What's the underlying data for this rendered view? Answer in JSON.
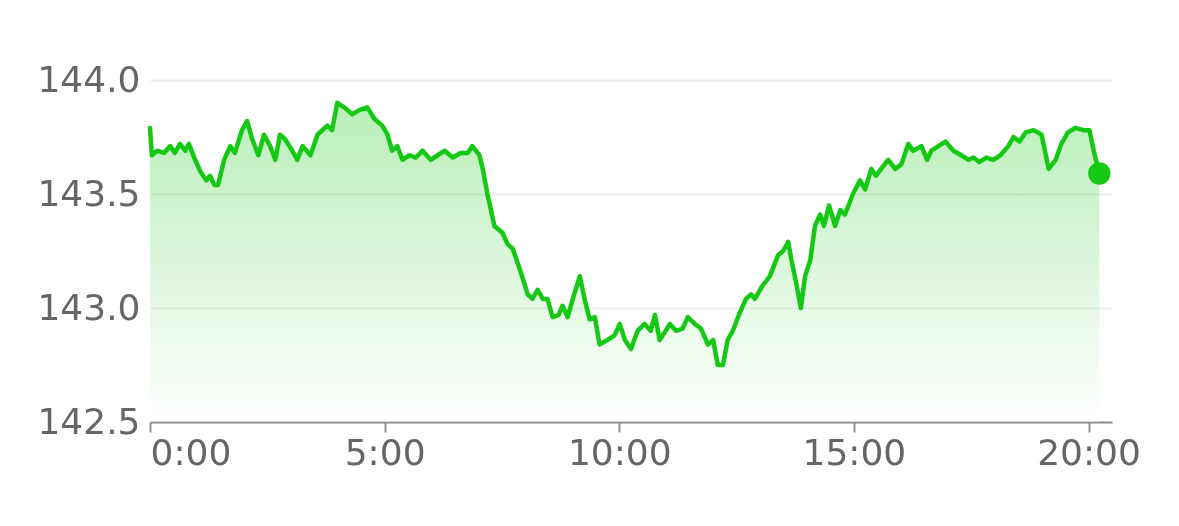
{
  "chart_data": {
    "type": "area",
    "xlim": [
      0,
      20.5
    ],
    "ylim": [
      142.5,
      144.0
    ],
    "xticks": [
      {
        "value": 0,
        "label": "0:00"
      },
      {
        "value": 5,
        "label": "5:00"
      },
      {
        "value": 10,
        "label": "10:00"
      },
      {
        "value": 15,
        "label": "15:00"
      },
      {
        "value": 20,
        "label": "20:00"
      }
    ],
    "yticks": [
      {
        "value": 142.5,
        "label": "142.5"
      },
      {
        "value": 143,
        "label": "143.0"
      },
      {
        "value": 143.5,
        "label": "143.5"
      },
      {
        "value": 144,
        "label": "144.0"
      }
    ],
    "grid": "y",
    "series": [
      {
        "color": "#14c814",
        "x": [
          0,
          0.04,
          0.15,
          0.3,
          0.43,
          0.53,
          0.64,
          0.75,
          0.83,
          0.94,
          1.07,
          1.2,
          1.28,
          1.37,
          1.45,
          1.58,
          1.71,
          1.81,
          1.96,
          2.07,
          2.18,
          2.31,
          2.43,
          2.56,
          2.67,
          2.77,
          2.88,
          3.03,
          3.14,
          3.25,
          3.42,
          3.57,
          3.78,
          3.88,
          3.99,
          4.14,
          4.31,
          4.48,
          4.63,
          4.78,
          4.95,
          5.06,
          5.16,
          5.27,
          5.38,
          5.53,
          5.66,
          5.81,
          5.98,
          6.13,
          6.28,
          6.45,
          6.62,
          6.77,
          6.87,
          7.02,
          7.09,
          7.19,
          7.34,
          7.51,
          7.62,
          7.73,
          7.88,
          8.05,
          8.15,
          8.26,
          8.37,
          8.47,
          8.58,
          8.71,
          8.79,
          8.9,
          9.01,
          9.16,
          9.26,
          9.37,
          9.48,
          9.58,
          9.75,
          9.9,
          10.01,
          10.12,
          10.25,
          10.39,
          10.54,
          10.67,
          10.76,
          10.86,
          10.99,
          11.08,
          11.21,
          11.35,
          11.46,
          11.61,
          11.74,
          11.89,
          12.0,
          12.1,
          12.21,
          12.31,
          12.42,
          12.57,
          12.7,
          12.81,
          12.89,
          13.06,
          13.21,
          13.38,
          13.49,
          13.6,
          13.66,
          13.77,
          13.87,
          13.96,
          14.07,
          14.17,
          14.28,
          14.36,
          14.47,
          14.6,
          14.71,
          14.81,
          14.98,
          15.13,
          15.24,
          15.37,
          15.47,
          15.58,
          15.73,
          15.88,
          16.01,
          16.16,
          16.26,
          16.44,
          16.56,
          16.65,
          16.8,
          16.95,
          17.12,
          17.29,
          17.44,
          17.55,
          17.67,
          17.82,
          17.97,
          18.12,
          18.29,
          18.4,
          18.53,
          18.66,
          18.83,
          19.0,
          19.15,
          19.3,
          19.42,
          19.56,
          19.72,
          19.89,
          20.02,
          20.11,
          20.17,
          20.23
        ],
        "values": [
          143.79,
          143.67,
          143.69,
          143.68,
          143.71,
          143.68,
          143.72,
          143.69,
          143.72,
          143.66,
          143.6,
          143.56,
          143.58,
          143.54,
          143.54,
          143.65,
          143.71,
          143.68,
          143.78,
          143.82,
          143.74,
          143.67,
          143.76,
          143.71,
          143.65,
          143.76,
          143.74,
          143.69,
          143.65,
          143.71,
          143.67,
          143.76,
          143.8,
          143.78,
          143.9,
          143.88,
          143.85,
          143.87,
          143.88,
          143.83,
          143.8,
          143.76,
          143.69,
          143.71,
          143.65,
          143.67,
          143.66,
          143.69,
          143.65,
          143.67,
          143.69,
          143.66,
          143.68,
          143.68,
          143.71,
          143.67,
          143.61,
          143.5,
          143.36,
          143.33,
          143.28,
          143.26,
          143.17,
          143.06,
          143.04,
          143.08,
          143.04,
          143.04,
          142.96,
          142.97,
          143.01,
          142.96,
          143.04,
          143.14,
          143.04,
          142.95,
          142.96,
          142.84,
          142.86,
          142.88,
          142.93,
          142.86,
          142.82,
          142.9,
          142.93,
          142.9,
          142.97,
          142.86,
          142.9,
          142.93,
          142.9,
          142.91,
          142.96,
          142.93,
          142.91,
          142.84,
          142.86,
          142.75,
          142.75,
          142.86,
          142.9,
          142.98,
          143.04,
          143.06,
          143.04,
          143.1,
          143.14,
          143.23,
          143.25,
          143.29,
          143.22,
          143.11,
          143.0,
          143.14,
          143.21,
          143.36,
          143.41,
          143.36,
          143.45,
          143.36,
          143.43,
          143.41,
          143.5,
          143.56,
          143.52,
          143.61,
          143.58,
          143.61,
          143.65,
          143.61,
          143.63,
          143.72,
          143.69,
          143.71,
          143.65,
          143.69,
          143.71,
          143.73,
          143.69,
          143.67,
          143.65,
          143.66,
          143.64,
          143.66,
          143.65,
          143.67,
          143.71,
          143.75,
          143.73,
          143.77,
          143.78,
          143.76,
          143.61,
          143.65,
          143.72,
          143.77,
          143.79,
          143.78,
          143.78,
          143.69,
          143.64,
          143.59
        ]
      },
      {
        "type": "scatter",
        "color": "#14c814",
        "x": [
          20.23
        ],
        "values": [
          143.59
        ]
      }
    ]
  }
}
